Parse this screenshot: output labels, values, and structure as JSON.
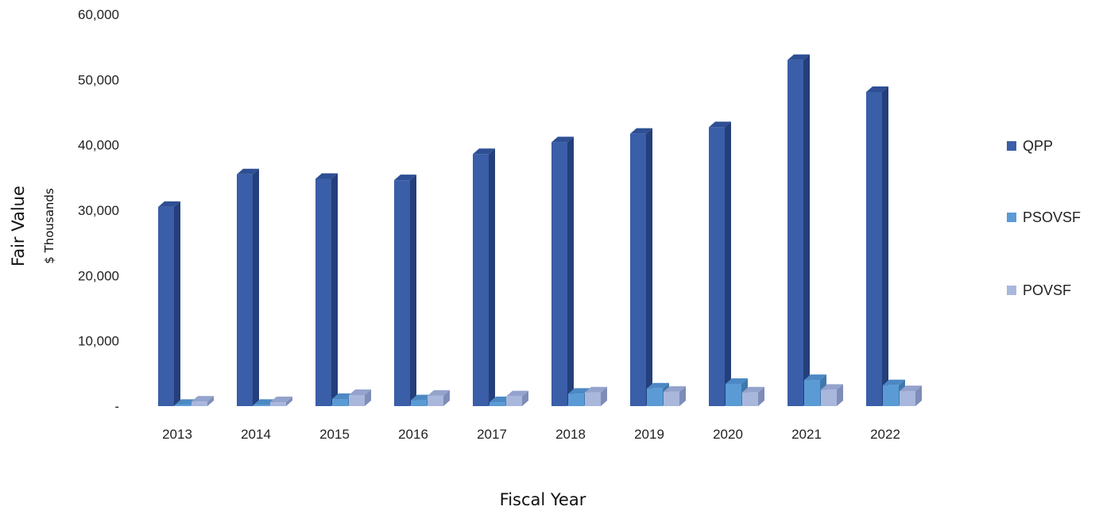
{
  "chart_data": {
    "type": "bar",
    "title": "",
    "xlabel": "Fiscal Year",
    "ylabel": "Fair Value",
    "ylabel_sub": "$ Thousands",
    "ylim": [
      0,
      60000
    ],
    "yticks": [
      0,
      10000,
      20000,
      30000,
      40000,
      50000,
      60000
    ],
    "ytick_labels": [
      "-",
      "10,000",
      "20,000",
      "30,000",
      "40,000",
      "50,000",
      "60,000"
    ],
    "categories": [
      "2013",
      "2014",
      "2015",
      "2016",
      "2017",
      "2018",
      "2019",
      "2020",
      "2021",
      "2022"
    ],
    "series": [
      {
        "name": "QPP",
        "values": [
          30500,
          35500,
          34800,
          34600,
          38600,
          40400,
          41700,
          42700,
          53000,
          48100
        ]
      },
      {
        "name": "PSOVSF",
        "values": [
          200,
          200,
          1100,
          900,
          600,
          1900,
          2700,
          3400,
          4000,
          3200
        ]
      },
      {
        "name": "POVSF",
        "values": [
          700,
          600,
          1700,
          1600,
          1500,
          2100,
          2200,
          2100,
          2500,
          2300
        ]
      }
    ],
    "legend_position": "right",
    "grid": false,
    "style": "3d-clustered-column"
  },
  "colors": {
    "QPP": {
      "front": "#3a5ea8",
      "side": "#243f7a",
      "top": "#2e4f94"
    },
    "PSOVSF": {
      "front": "#5b9bd5",
      "side": "#3f78ad",
      "top": "#4c89c4"
    },
    "POVSF": {
      "front": "#a9b7dc",
      "side": "#7e8db8",
      "top": "#94a3cc"
    }
  }
}
